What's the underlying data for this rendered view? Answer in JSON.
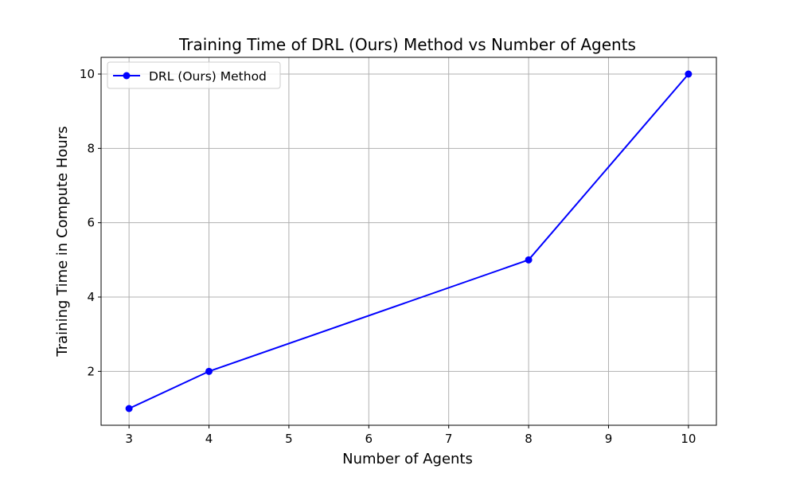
{
  "chart_data": {
    "type": "line",
    "title": "Training Time of DRL (Ours) Method vs Number of Agents",
    "xlabel": "Number of Agents",
    "ylabel": "Training Time in Compute Hours",
    "x": [
      3,
      4,
      8,
      10
    ],
    "series": [
      {
        "name": "DRL (Ours) Method",
        "values": [
          1,
          2,
          5,
          10
        ],
        "color": "#0000ff",
        "marker": "circle"
      }
    ],
    "xlim": [
      2.65,
      10.35
    ],
    "ylim": [
      0.55,
      10.45
    ],
    "x_ticks": [
      3,
      4,
      5,
      6,
      7,
      8,
      9,
      10
    ],
    "y_ticks": [
      2,
      4,
      6,
      8,
      10
    ],
    "x_tick_labels": [
      "3",
      "4",
      "5",
      "6",
      "7",
      "8",
      "9",
      "10"
    ],
    "y_tick_labels": [
      "2",
      "4",
      "6",
      "8",
      "10"
    ],
    "grid": true,
    "grid_color": "#b0b0b0",
    "legend": {
      "position": "top-left",
      "label": "DRL (Ours) Method"
    }
  }
}
